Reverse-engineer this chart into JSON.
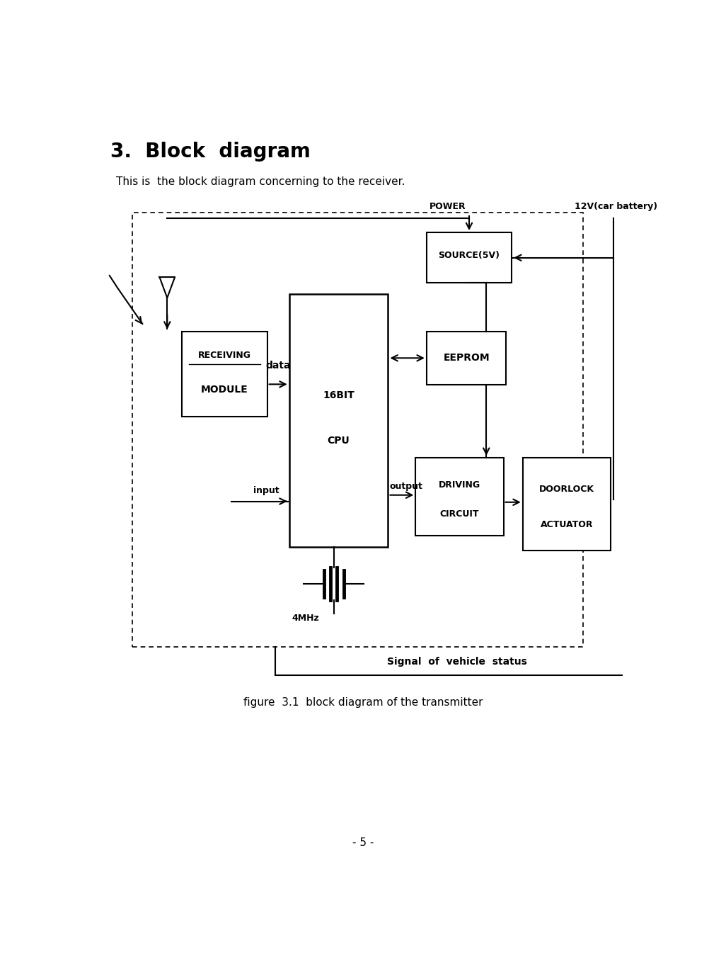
{
  "title": "3.  Block  diagram",
  "subtitle": "This is  the block diagram concerning to the receiver.",
  "fig_caption": "figure  3.1  block diagram of the transmitter",
  "signal_label": "Signal  of  vehicle  status",
  "page_number": "- 5 -",
  "background_color": "#ffffff",
  "line_color": "#000000"
}
